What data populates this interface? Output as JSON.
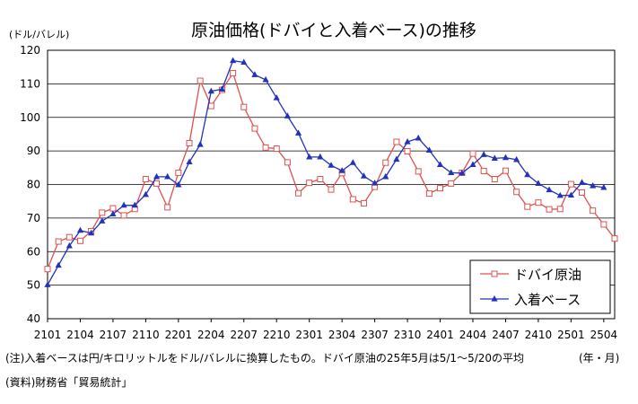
{
  "chart_data": {
    "type": "line",
    "title": "原油価格(ドバイと入着ベース)の推移",
    "unit_label": "(ドル/バレル)",
    "period_label": "(年・月)",
    "ylim": [
      40,
      120
    ],
    "yticks": [
      "40",
      "50",
      "60",
      "70",
      "80",
      "90",
      "100",
      "110",
      "120"
    ],
    "xticks": [
      "2101",
      "2104",
      "2107",
      "2110",
      "2201",
      "2204",
      "2207",
      "2210",
      "2301",
      "2304",
      "2307",
      "2310",
      "2401",
      "2404",
      "2407",
      "2410",
      "2501",
      "2504"
    ],
    "grid": "horizontal",
    "legend_position": "bottom-right",
    "x": [
      "2101",
      "2102",
      "2103",
      "2104",
      "2105",
      "2106",
      "2107",
      "2108",
      "2109",
      "2110",
      "2111",
      "2112",
      "2201",
      "2202",
      "2203",
      "2204",
      "2205",
      "2206",
      "2207",
      "2208",
      "2209",
      "2210",
      "2211",
      "2212",
      "2301",
      "2302",
      "2303",
      "2304",
      "2305",
      "2306",
      "2307",
      "2308",
      "2309",
      "2310",
      "2311",
      "2312",
      "2401",
      "2402",
      "2403",
      "2404",
      "2405",
      "2406",
      "2407",
      "2408",
      "2409",
      "2410",
      "2411",
      "2412",
      "2501",
      "2502",
      "2503",
      "2504",
      "2505"
    ],
    "series": [
      {
        "name": "ドバイ原油",
        "color": "#e05050",
        "marker": "square-open",
        "values": [
          54.8,
          63.0,
          64.3,
          63.2,
          66.1,
          71.6,
          72.9,
          70.8,
          72.7,
          81.6,
          80.3,
          73.2,
          83.5,
          92.3,
          110.9,
          103.4,
          108.2,
          113.2,
          103.1,
          96.7,
          91.0,
          90.7,
          86.6,
          77.4,
          80.5,
          81.6,
          78.5,
          83.4,
          75.6,
          74.4,
          79.3,
          86.5,
          92.7,
          89.9,
          83.9,
          77.3,
          78.9,
          80.3,
          83.5,
          89.2,
          84.0,
          81.6,
          84.1,
          77.8,
          73.4,
          74.6,
          72.6,
          72.7,
          80.1,
          77.6,
          72.2,
          68.1,
          63.9
        ]
      },
      {
        "name": "入着ベース",
        "color": "#2233bb",
        "marker": "triangle-filled",
        "values": [
          50.1,
          55.9,
          61.7,
          66.3,
          65.5,
          69.1,
          71.2,
          73.8,
          73.8,
          77.0,
          82.3,
          82.3,
          79.9,
          86.7,
          91.9,
          107.8,
          108.4,
          116.9,
          116.4,
          112.7,
          111.2,
          105.8,
          100.4,
          95.3,
          88.2,
          88.2,
          85.7,
          84.1,
          86.5,
          82.5,
          80.4,
          82.3,
          87.5,
          92.7,
          93.8,
          90.2,
          85.9,
          83.5,
          83.4,
          85.9,
          88.9,
          87.8,
          88.0,
          87.4,
          82.9,
          80.3,
          78.4,
          76.7,
          76.8,
          80.6,
          79.6,
          79.1,
          null
        ]
      }
    ]
  },
  "notes": {
    "note1": "(注)入着ベースは円/キロリットルをドル/バレルに換算したもの。ドバイ原油の25年5月は5/1～5/20の平均",
    "source": "(資料)財務省「貿易統計」"
  }
}
